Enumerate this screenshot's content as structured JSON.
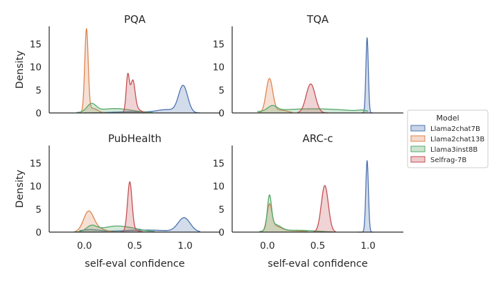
{
  "chart_data": {
    "type": "area",
    "kind": "kde-density facet grid",
    "xlabel": "self-eval confidence",
    "ylabel": "Density",
    "xlim": [
      -0.35,
      1.35
    ],
    "ylim": [
      0,
      18.8
    ],
    "xticks": [
      0.0,
      0.5,
      1.0
    ],
    "yticks": [
      0,
      5,
      10,
      15
    ],
    "grid": false,
    "legend": {
      "title": "Model",
      "placement": "right",
      "entries": [
        "Llama2chat7B",
        "Llama2chat13B",
        "Llama3inst8B",
        "Selfrag-7B"
      ]
    },
    "series_colors": {
      "Llama2chat7B": "#4c72b0",
      "Llama2chat13B": "#dd8452",
      "Llama3inst8B": "#55a868",
      "Selfrag-7B": "#c44e52"
    },
    "panels": [
      {
        "title": "PQA",
        "series": [
          {
            "name": "Llama2chat7B",
            "peaks": [
              [
                0.98,
                5.8,
                0.045
              ],
              [
                0.82,
                0.7,
                0.1
              ],
              [
                0.45,
                0.25,
                0.18
              ]
            ],
            "range": [
              0.0,
              1.15
            ]
          },
          {
            "name": "Llama2chat13B",
            "peaks": [
              [
                0.02,
                17.8,
                0.017
              ],
              [
                0.08,
                1.0,
                0.05
              ]
            ],
            "range": [
              -0.06,
              0.2
            ]
          },
          {
            "name": "Llama3inst8B",
            "peaks": [
              [
                0.07,
                1.7,
                0.045
              ],
              [
                0.3,
                0.95,
                0.17
              ]
            ],
            "range": [
              -0.08,
              0.68
            ]
          },
          {
            "name": "Selfrag-7B",
            "peaks": [
              [
                0.43,
                7.7,
                0.016
              ],
              [
                0.48,
                6.2,
                0.022
              ],
              [
                0.5,
                1.0,
                0.05
              ]
            ],
            "range": [
              0.38,
              0.6
            ]
          }
        ]
      },
      {
        "title": "TQA",
        "series": [
          {
            "name": "Llama2chat7B",
            "peaks": [
              [
                0.99,
                16.3,
                0.012
              ]
            ],
            "range": [
              0.93,
              1.05
            ]
          },
          {
            "name": "Llama2chat13B",
            "peaks": [
              [
                0.02,
                7.4,
                0.033
              ],
              [
                0.14,
                0.6,
                0.06
              ]
            ],
            "range": [
              -0.1,
              0.25
            ]
          },
          {
            "name": "Llama3inst8B",
            "peaks": [
              [
                0.05,
                1.1,
                0.045
              ],
              [
                0.45,
                0.9,
                0.38
              ],
              [
                0.94,
                0.25,
                0.04
              ]
            ],
            "range": [
              -0.1,
              1.0
            ]
          },
          {
            "name": "Selfrag-7B",
            "peaks": [
              [
                0.43,
                6.3,
                0.045
              ]
            ],
            "range": [
              0.3,
              0.6
            ]
          }
        ]
      },
      {
        "title": "PubHealth",
        "series": [
          {
            "name": "Llama2chat7B",
            "peaks": [
              [
                0.99,
                3.0,
                0.06
              ],
              [
                0.6,
                0.45,
                0.25
              ],
              [
                0.05,
                0.5,
                0.1
              ]
            ],
            "range": [
              -0.05,
              1.15
            ]
          },
          {
            "name": "Llama2chat13B",
            "peaks": [
              [
                0.04,
                4.1,
                0.05
              ],
              [
                0.12,
                0.8,
                0.08
              ]
            ],
            "range": [
              -0.1,
              0.3
            ]
          },
          {
            "name": "Llama3inst8B",
            "peaks": [
              [
                0.07,
                1.2,
                0.05
              ],
              [
                0.3,
                1.2,
                0.14
              ],
              [
                0.5,
                0.4,
                0.12
              ]
            ],
            "range": [
              -0.1,
              0.7
            ]
          },
          {
            "name": "Selfrag-7B",
            "peaks": [
              [
                0.45,
                10.5,
                0.022
              ],
              [
                0.48,
                0.5,
                0.05
              ]
            ],
            "range": [
              0.35,
              0.58
            ]
          }
        ]
      },
      {
        "title": "ARC-c",
        "series": [
          {
            "name": "Llama2chat7B",
            "peaks": [
              [
                0.99,
                15.5,
                0.013
              ]
            ],
            "range": [
              0.9,
              1.05
            ]
          },
          {
            "name": "Llama2chat13B",
            "peaks": [
              [
                0.02,
                5.4,
                0.025
              ],
              [
                0.08,
                1.2,
                0.06
              ],
              [
                0.25,
                0.3,
                0.1
              ]
            ],
            "range": [
              -0.08,
              0.4
            ]
          },
          {
            "name": "Llama3inst8B",
            "peaks": [
              [
                0.02,
                6.9,
                0.02
              ],
              [
                0.07,
                1.5,
                0.06
              ],
              [
                0.3,
                0.4,
                0.18
              ]
            ],
            "range": [
              -0.08,
              0.65
            ]
          },
          {
            "name": "Selfrag-7B",
            "peaks": [
              [
                0.57,
                10.1,
                0.035
              ]
            ],
            "range": [
              0.46,
              0.68
            ]
          }
        ]
      }
    ]
  }
}
